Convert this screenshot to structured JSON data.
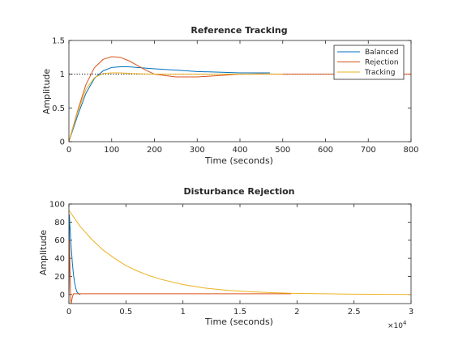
{
  "figure": {
    "colors": {
      "series": [
        "#0072bd",
        "#d95319",
        "#edb120"
      ],
      "axis": "#262626",
      "background": "#ffffff"
    }
  },
  "chart_data": [
    {
      "type": "line",
      "title": "Reference Tracking",
      "xlabel": "Time (seconds)",
      "ylabel": "Amplitude",
      "xlim": [
        0,
        800
      ],
      "ylim": [
        0,
        1.5
      ],
      "xticks": [
        0,
        100,
        200,
        300,
        400,
        500,
        600,
        700,
        800
      ],
      "yticks": [
        0,
        0.5,
        1,
        1.5
      ],
      "xtick_labels": [
        "0",
        "100",
        "200",
        "300",
        "400",
        "500",
        "600",
        "700",
        "800"
      ],
      "ytick_labels": [
        "0",
        "0.5",
        "1",
        "1.5"
      ],
      "grid": false,
      "legend": {
        "location": "top-right",
        "entries": [
          "Balanced",
          "Rejection",
          "Tracking"
        ]
      },
      "reference_line": {
        "y": 1,
        "style": "dotted",
        "color": "#000000"
      },
      "series": [
        {
          "name": "Balanced",
          "color": "#0072bd",
          "x": [
            0,
            20,
            40,
            60,
            80,
            100,
            120,
            140,
            160,
            200,
            250,
            300,
            350,
            400,
            470
          ],
          "y": [
            0,
            0.38,
            0.72,
            0.94,
            1.05,
            1.1,
            1.11,
            1.11,
            1.1,
            1.08,
            1.06,
            1.04,
            1.03,
            1.02,
            1.02
          ]
        },
        {
          "name": "Rejection",
          "color": "#d95319",
          "x": [
            0,
            20,
            40,
            60,
            80,
            100,
            120,
            140,
            160,
            180,
            200,
            250,
            300,
            350,
            400,
            450,
            500,
            800
          ],
          "y": [
            0,
            0.45,
            0.85,
            1.1,
            1.22,
            1.26,
            1.25,
            1.2,
            1.13,
            1.06,
            1.0,
            0.96,
            0.96,
            0.98,
            1.0,
            1.005,
            1.0,
            1.0
          ]
        },
        {
          "name": "Tracking",
          "color": "#edb120",
          "x": [
            0,
            20,
            40,
            60,
            80,
            100,
            120,
            150,
            200,
            300,
            400,
            500
          ],
          "y": [
            0,
            0.43,
            0.78,
            0.95,
            1.01,
            1.02,
            1.02,
            1.01,
            1.0,
            1.0,
            1.0,
            1.0
          ]
        }
      ]
    },
    {
      "type": "line",
      "title": "Disturbance Rejection",
      "xlabel": "Time (seconds)",
      "ylabel": "Amplitude",
      "xlim": [
        0,
        30000
      ],
      "ylim": [
        -10,
        100
      ],
      "xticks": [
        0,
        5000,
        10000,
        15000,
        20000,
        25000,
        30000
      ],
      "yticks": [
        0,
        20,
        40,
        60,
        80,
        100
      ],
      "xtick_labels": [
        "0",
        "0.5",
        "1",
        "1.5",
        "2",
        "2.5",
        "3"
      ],
      "ytick_labels": [
        "0",
        "20",
        "40",
        "60",
        "80",
        "100"
      ],
      "x_exponent_base": "×10",
      "x_exponent_power": "4",
      "grid": false,
      "legend": null,
      "series": [
        {
          "name": "Balanced",
          "color": "#0072bd",
          "x": [
            0,
            40,
            80,
            120,
            160,
            200,
            250,
            300,
            400,
            500,
            600,
            700,
            800,
            900,
            1000
          ],
          "y": [
            0,
            88,
            78,
            70,
            60,
            52,
            44,
            35,
            22,
            13,
            7,
            3,
            1.5,
            0.5,
            0
          ]
        },
        {
          "name": "Rejection",
          "color": "#d95319",
          "x": [
            0,
            50,
            100,
            150,
            200,
            300,
            400,
            600,
            1000,
            5000,
            10000,
            15000,
            19500
          ],
          "y": [
            0,
            60,
            25,
            -6,
            -10,
            -3,
            0.8,
            0.8,
            0.8,
            0.8,
            0.8,
            0.8,
            0.8
          ]
        },
        {
          "name": "Tracking",
          "color": "#edb120",
          "x": [
            0,
            1000,
            2000,
            3000,
            4000,
            5000,
            6000,
            7000,
            8000,
            10000,
            12000,
            14000,
            16000,
            18000,
            20000,
            25000,
            30000
          ],
          "y": [
            93,
            75,
            61,
            49,
            40,
            32,
            26,
            21,
            17,
            11,
            7,
            4.5,
            3,
            2,
            1.2,
            0.4,
            0.1
          ]
        }
      ]
    }
  ]
}
